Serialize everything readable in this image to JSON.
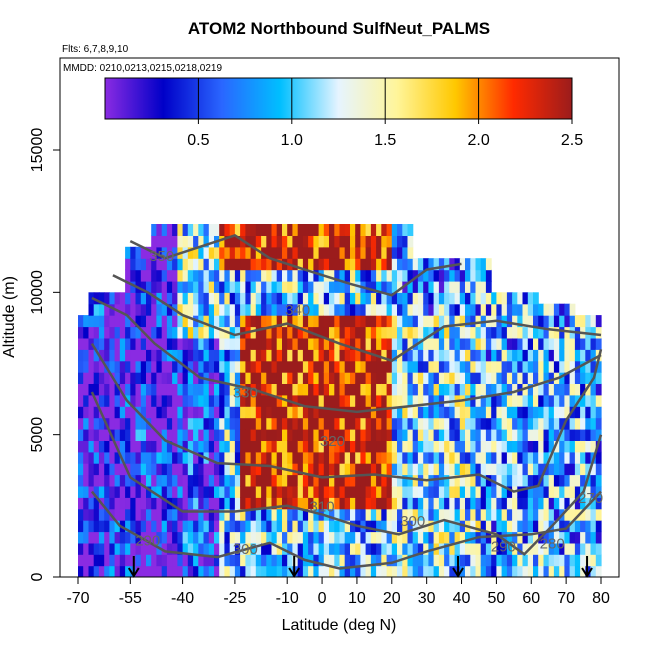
{
  "chart_data": {
    "type": "heatmap",
    "title": "ATOM2 Northbound SulfNeut_PALMS",
    "flights_note": "Flts: 6,7,8,9,10",
    "dates_note": "MMDD: 0210,0213,0215,0218,0219",
    "xlabel": "Latitude (deg N)",
    "ylabel": "Altitude (m)",
    "xlim": [
      -70,
      83
    ],
    "ylim": [
      0,
      17500
    ],
    "x_ticks": [
      -70,
      -55,
      -40,
      -25,
      -10,
      0,
      10,
      20,
      30,
      40,
      50,
      60,
      70,
      80
    ],
    "y_ticks": [
      0,
      5000,
      10000,
      15000
    ],
    "colorbar": {
      "min": 0,
      "max": 2.5,
      "ticks": [
        0.5,
        1.0,
        1.5,
        2.0,
        2.5
      ],
      "tick_labels": [
        "0.5",
        "1.0",
        "1.5",
        "2.0",
        "2.5"
      ],
      "colors": [
        "#8a2be2",
        "#0000c8",
        "#2a66ff",
        "#00bfff",
        "#e6f4ff",
        "#fff59a",
        "#ffc800",
        "#ff2a00",
        "#9b1c1c"
      ]
    },
    "contour_labels": [
      {
        "text": "350",
        "x": -46,
        "y": 11100
      },
      {
        "text": "340",
        "x": -7,
        "y": 9200
      },
      {
        "text": "330",
        "x": -22,
        "y": 6300
      },
      {
        "text": "320",
        "x": 3,
        "y": 4600
      },
      {
        "text": "310",
        "x": 0,
        "y": 2300
      },
      {
        "text": "300",
        "x": -22,
        "y": 800
      },
      {
        "text": "300",
        "x": 26,
        "y": 1800
      },
      {
        "text": "290",
        "x": -50,
        "y": 1100
      },
      {
        "text": "290",
        "x": 52,
        "y": 900
      },
      {
        "text": "280",
        "x": 66,
        "y": 1000
      },
      {
        "text": "270",
        "x": 77,
        "y": 2600
      }
    ],
    "profile_arrows_lat": [
      -54,
      -8,
      39,
      76
    ],
    "contour_color": "#555555"
  }
}
